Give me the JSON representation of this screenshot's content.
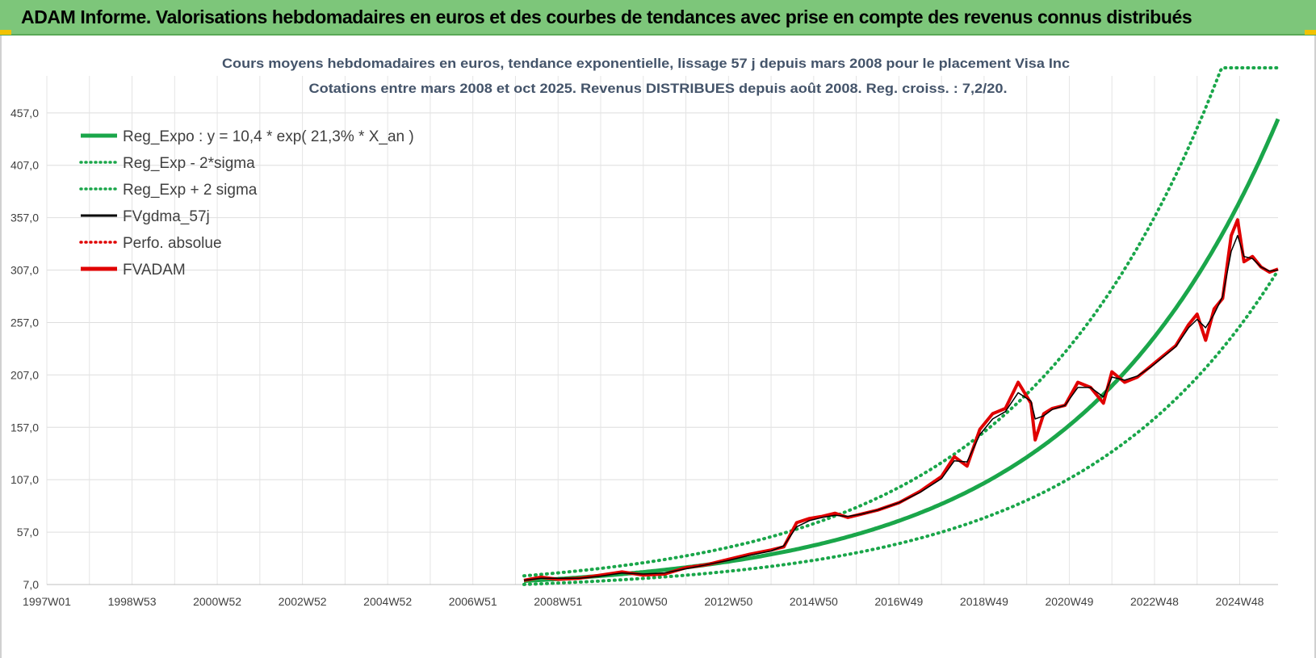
{
  "banner": {
    "title": "ADAM Informe. Valorisations hebdomadaires en euros et des courbes de tendances avec prise en compte des revenus connus distribués"
  },
  "chart_data": {
    "type": "line",
    "title_line1": "Cours moyens hebdomadaires en euros, tendance exponentielle, lissage 57 j depuis mars 2008 pour le placement Visa Inc",
    "title_line2": "Cotations entre mars 2008 et oct 2025. Revenus DISTRIBUES depuis août 2008. Reg. croiss. : 7,2/20.",
    "y_ticks": [
      "7,0",
      "57,0",
      "107,0",
      "157,0",
      "207,0",
      "257,0",
      "307,0",
      "357,0",
      "407,0",
      "457,0"
    ],
    "ylim": [
      7,
      500
    ],
    "x_range": [
      1997.0,
      2025.9
    ],
    "x_ticks": [
      {
        "label": "1997W01",
        "x": 1997.0
      },
      {
        "label": "1998W53",
        "x": 1999.0
      },
      {
        "label": "2000W52",
        "x": 2001.0
      },
      {
        "label": "2002W52",
        "x": 2003.0
      },
      {
        "label": "2004W52",
        "x": 2005.0
      },
      {
        "label": "2006W51",
        "x": 2007.0
      },
      {
        "label": "2008W51",
        "x": 2009.0
      },
      {
        "label": "2010W50",
        "x": 2011.0
      },
      {
        "label": "2012W50",
        "x": 2013.0
      },
      {
        "label": "2014W50",
        "x": 2015.0
      },
      {
        "label": "2016W49",
        "x": 2017.0
      },
      {
        "label": "2018W49",
        "x": 2019.0
      },
      {
        "label": "2020W49",
        "x": 2021.0
      },
      {
        "label": "2022W48",
        "x": 2023.0
      },
      {
        "label": "2024W48",
        "x": 2025.0
      }
    ],
    "regression": {
      "a": 10.4,
      "b": 0.213,
      "start": 2008.2,
      "lower_factor": 0.68,
      "upper_factor": 1.47,
      "upper_cap": 500
    },
    "legend": [
      {
        "label": "Reg_Expo : y = 10,4 * exp( 21,3% *  X_an )",
        "color": "#1aa64a",
        "style": "solid-thick"
      },
      {
        "label": "Reg_Exp - 2*sigma",
        "color": "#1aa64a",
        "style": "dotted"
      },
      {
        "label": "Reg_Exp + 2 sigma",
        "color": "#1aa64a",
        "style": "dotted"
      },
      {
        "label": "FVgdma_57j",
        "color": "#000000",
        "style": "solid"
      },
      {
        "label": "Perfo. absolue",
        "color": "#e00000",
        "style": "dotted"
      },
      {
        "label": "FVADAM",
        "color": "#e00000",
        "style": "solid-thick"
      }
    ],
    "series_fvadam": {
      "name": "FVADAM",
      "x": [
        2008.2,
        2008.6,
        2009.0,
        2009.5,
        2010.0,
        2010.5,
        2011.0,
        2011.5,
        2012.0,
        2012.5,
        2013.0,
        2013.5,
        2014.0,
        2014.3,
        2014.6,
        2014.9,
        2015.2,
        2015.5,
        2015.8,
        2016.1,
        2016.5,
        2017.0,
        2017.5,
        2018.0,
        2018.3,
        2018.6,
        2018.9,
        2019.2,
        2019.5,
        2019.8,
        2020.1,
        2020.2,
        2020.4,
        2020.6,
        2020.9,
        2021.2,
        2021.5,
        2021.8,
        2022.0,
        2022.3,
        2022.6,
        2022.9,
        2023.2,
        2023.5,
        2023.8,
        2024.0,
        2024.2,
        2024.4,
        2024.6,
        2024.8,
        2024.95,
        2025.1,
        2025.3,
        2025.5,
        2025.7,
        2025.9
      ],
      "y": [
        11,
        14,
        12,
        13,
        16,
        19,
        16,
        17,
        23,
        26,
        31,
        36,
        40,
        43,
        66,
        70,
        72,
        75,
        71,
        74,
        78,
        85,
        96,
        110,
        129,
        120,
        155,
        170,
        175,
        200,
        180,
        145,
        170,
        175,
        178,
        200,
        195,
        180,
        210,
        200,
        205,
        215,
        225,
        235,
        255,
        265,
        240,
        270,
        280,
        340,
        355,
        315,
        320,
        310,
        305,
        308
      ]
    },
    "series_fvgdma": {
      "name": "FVgdma_57j",
      "x": [
        2008.2,
        2008.6,
        2009.0,
        2009.5,
        2010.0,
        2010.5,
        2011.0,
        2011.5,
        2012.0,
        2012.5,
        2013.0,
        2013.5,
        2014.0,
        2014.3,
        2014.6,
        2014.9,
        2015.2,
        2015.5,
        2015.8,
        2016.1,
        2016.5,
        2017.0,
        2017.5,
        2018.0,
        2018.3,
        2018.6,
        2018.9,
        2019.2,
        2019.5,
        2019.8,
        2020.1,
        2020.2,
        2020.4,
        2020.6,
        2020.9,
        2021.2,
        2021.5,
        2021.8,
        2022.0,
        2022.3,
        2022.6,
        2022.9,
        2023.2,
        2023.5,
        2023.8,
        2024.0,
        2024.2,
        2024.4,
        2024.6,
        2024.8,
        2024.95,
        2025.1,
        2025.3,
        2025.5,
        2025.7,
        2025.9
      ],
      "y": [
        11,
        13,
        13,
        13,
        15,
        18,
        17,
        18,
        22,
        26,
        30,
        35,
        39,
        44,
        62,
        68,
        71,
        73,
        72,
        74,
        78,
        85,
        95,
        108,
        125,
        124,
        150,
        165,
        172,
        190,
        182,
        165,
        168,
        174,
        178,
        195,
        195,
        186,
        205,
        202,
        206,
        214,
        224,
        234,
        252,
        260,
        252,
        265,
        282,
        325,
        340,
        320,
        318,
        310,
        306,
        307
      ]
    },
    "xlabel": "",
    "ylabel": ""
  }
}
